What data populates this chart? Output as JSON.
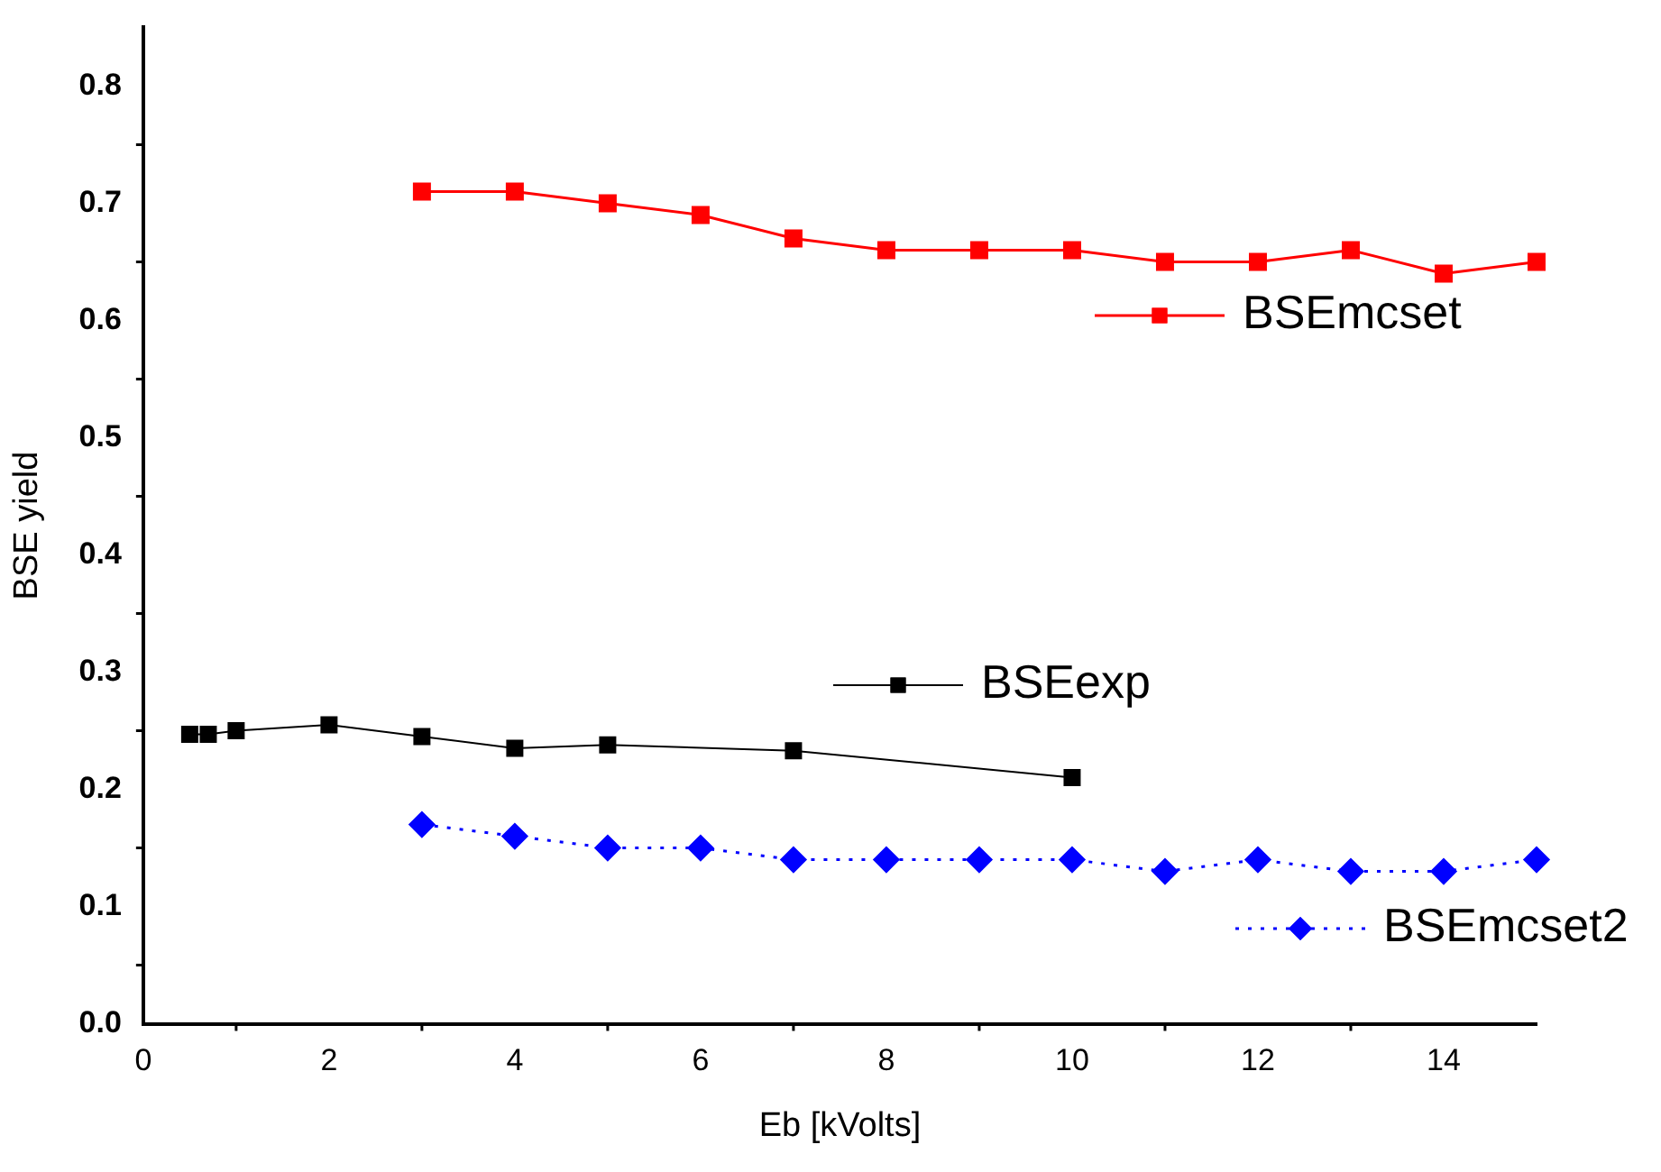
{
  "chart_data": {
    "type": "line",
    "xlabel": "Eb [kVolts]",
    "ylabel": "BSE yield",
    "xlim": [
      0,
      15
    ],
    "xticks": [
      0,
      {
        "value": 1,
        "label": null
      },
      2,
      {
        "value": 3,
        "label": null
      },
      4,
      {
        "value": 5,
        "label": null
      },
      6,
      {
        "value": 7,
        "label": null
      },
      8,
      {
        "value": 9,
        "label": null
      },
      10,
      {
        "value": 11,
        "label": null
      },
      12,
      {
        "value": 13,
        "label": null
      },
      14
    ],
    "ylim": [
      0,
      0.85
    ],
    "yticks": [
      {
        "value": 0,
        "label": "0.0"
      },
      {
        "value": 0.05,
        "label": null
      },
      0.1,
      {
        "value": 0.15,
        "label": null
      },
      0.2,
      {
        "value": 0.25,
        "label": null
      },
      0.3,
      {
        "value": 0.35,
        "label": null
      },
      0.4,
      {
        "value": 0.45,
        "label": null
      },
      0.5,
      {
        "value": 0.55,
        "label": null
      },
      0.6,
      {
        "value": 0.65,
        "label": null
      },
      0.7,
      {
        "value": 0.75,
        "label": null
      },
      0.8
    ],
    "grid": false,
    "legend": "right",
    "marker": "square",
    "line_style": "solid",
    "series": [
      {
        "name": "BSEmcset",
        "color": "#ff0000",
        "x": [
          3,
          4,
          5,
          6,
          7,
          8,
          9,
          10,
          11,
          12,
          13,
          14,
          15
        ],
        "values": [
          0.71,
          0.71,
          0.7,
          0.69,
          0.67,
          0.66,
          0.66,
          0.66,
          0.65,
          0.65,
          0.66,
          0.64,
          0.65
        ]
      },
      {
        "name": "BSEexp",
        "color": "#000000",
        "x": [
          0.5,
          0.7,
          1,
          2,
          3,
          4,
          5,
          7,
          10
        ],
        "values": [
          0.247,
          0.247,
          0.25,
          0.255,
          0.245,
          0.235,
          0.238,
          0.233,
          0.21
        ]
      },
      {
        "name": "BSEmcset2",
        "color": "#0000ff",
        "marker": "diamond",
        "line_style": "dotted",
        "x": [
          3,
          4,
          5,
          6,
          7,
          8,
          9,
          10,
          11,
          12,
          13,
          14,
          15
        ],
        "values": [
          0.17,
          0.16,
          0.15,
          0.15,
          0.14,
          0.14,
          0.14,
          0.14,
          0.13,
          0.14,
          0.13,
          0.13,
          0.14
        ]
      }
    ]
  }
}
